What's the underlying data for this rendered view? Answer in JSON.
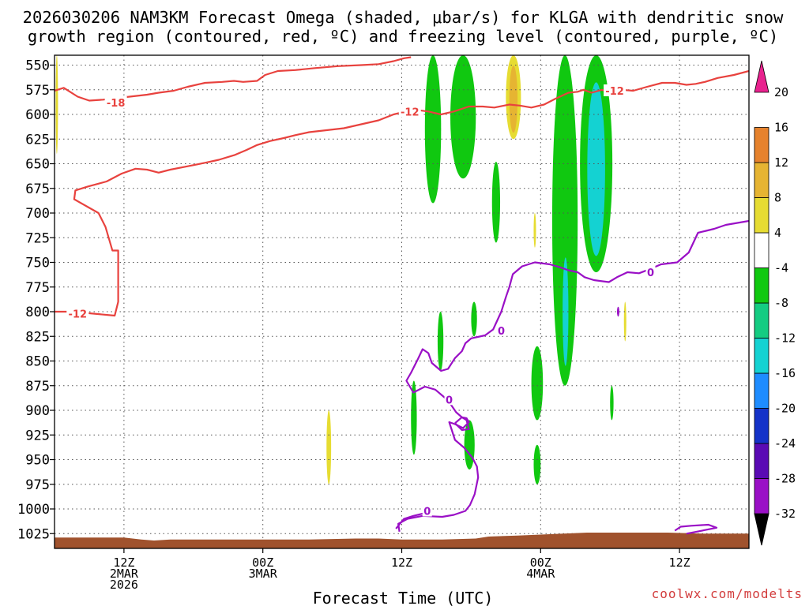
{
  "title": {
    "line1": "2026030206 NAM3KM Forecast Omega (shaded, μbar/s) for KLGA with dendritic snow",
    "line2": "growth region (contoured, red, ºC) and freezing level (contoured, purple, ºC)"
  },
  "credit": "coolwx.com/modelts",
  "colors": {
    "dendritic_contour": "#e8423e",
    "freezing_contour": "#9a10c6",
    "terrain": "#a0522d"
  },
  "chart_data": {
    "type": "heatmap",
    "xlabel": "Forecast Time (UTC)",
    "ylabel": "",
    "x_range_hours_after_init": [
      0,
      60
    ],
    "ylim": [
      1040,
      540
    ],
    "y_ticks": [
      550,
      575,
      600,
      625,
      650,
      675,
      700,
      725,
      750,
      775,
      800,
      825,
      850,
      875,
      900,
      925,
      950,
      975,
      1000,
      1025
    ],
    "x_ticks": [
      {
        "h": 6,
        "lines": [
          "12Z",
          "2MAR",
          "2026"
        ]
      },
      {
        "h": 18,
        "lines": [
          "00Z",
          "3MAR"
        ]
      },
      {
        "h": 30,
        "lines": [
          "12Z"
        ]
      },
      {
        "h": 42,
        "lines": [
          "00Z",
          "4MAR"
        ]
      },
      {
        "h": 54,
        "lines": [
          "12Z"
        ]
      }
    ],
    "grid": true,
    "colorbar": {
      "levels": [
        -36,
        -32,
        -28,
        -24,
        -20,
        -16,
        -12,
        -8,
        -4,
        4,
        8,
        12,
        16,
        20
      ],
      "colors": [
        "#a8a8a8",
        "#9a10c6",
        "#5a0ab4",
        "#1432c8",
        "#1e8cff",
        "#14d2d2",
        "#14cc82",
        "#10c810",
        "#ffffff",
        "#e6dc32",
        "#e6b432",
        "#e6822d",
        "#e84640"
      ]
    },
    "omega_features": [
      {
        "type": "shaded",
        "value_range": [
          4,
          8
        ],
        "h": [
          0.1,
          0.3
        ],
        "p": [
          540,
          640
        ]
      },
      {
        "type": "shaded",
        "value_range": [
          4,
          8
        ],
        "h": [
          23.5,
          23.9
        ],
        "p": [
          900,
          975
        ]
      },
      {
        "type": "shaded",
        "value_range": [
          -8,
          -4
        ],
        "h": [
          32.0,
          33.4
        ],
        "p": [
          540,
          690
        ]
      },
      {
        "type": "shaded",
        "value_range": [
          -8,
          -4
        ],
        "h": [
          34.2,
          36.4
        ],
        "p": [
          540,
          665
        ]
      },
      {
        "type": "shaded",
        "value_range": [
          -8,
          -4
        ],
        "h": [
          37.8,
          38.5
        ],
        "p": [
          648,
          730
        ]
      },
      {
        "type": "shaded",
        "value_range": [
          4,
          12
        ],
        "h": [
          39.0,
          40.3
        ],
        "p": [
          540,
          625
        ]
      },
      {
        "type": "shaded",
        "value_range": [
          -8,
          -4
        ],
        "h": [
          43.0,
          45.2
        ],
        "p": [
          540,
          875
        ]
      },
      {
        "type": "shaded",
        "value_range": [
          -16,
          -12
        ],
        "h": [
          43.9,
          44.4
        ],
        "p": [
          745,
          855
        ]
      },
      {
        "type": "shaded",
        "value_range": [
          -16,
          -4
        ],
        "h": [
          45.4,
          48.2
        ],
        "p": [
          540,
          760
        ]
      },
      {
        "type": "shaded",
        "value_range": [
          -8,
          -4
        ],
        "h": [
          33.1,
          33.6
        ],
        "p": [
          800,
          860
        ]
      },
      {
        "type": "shaded",
        "value_range": [
          -8,
          -4
        ],
        "h": [
          36.0,
          36.5
        ],
        "p": [
          790,
          825
        ]
      },
      {
        "type": "shaded",
        "value_range": [
          -8,
          -4
        ],
        "h": [
          30.8,
          31.3
        ],
        "p": [
          870,
          945
        ]
      },
      {
        "type": "shaded",
        "value_range": [
          -8,
          -4
        ],
        "h": [
          35.4,
          36.3
        ],
        "p": [
          910,
          960
        ]
      },
      {
        "type": "shaded",
        "value_range": [
          -8,
          -4
        ],
        "h": [
          41.2,
          42.2
        ],
        "p": [
          835,
          910
        ]
      },
      {
        "type": "shaded",
        "value_range": [
          -8,
          -4
        ],
        "h": [
          41.4,
          42.0
        ],
        "p": [
          935,
          975
        ]
      },
      {
        "type": "shaded",
        "value_range": [
          -8,
          -4
        ],
        "h": [
          48.0,
          48.3
        ],
        "p": [
          875,
          910
        ]
      },
      {
        "type": "shaded",
        "value_range": [
          4,
          8
        ],
        "h": [
          41.4,
          41.6
        ],
        "p": [
          700,
          735
        ]
      },
      {
        "type": "shaded",
        "value_range": [
          4,
          8
        ],
        "h": [
          49.2,
          49.4
        ],
        "p": [
          790,
          830
        ]
      },
      {
        "type": "shaded",
        "value_range": [
          -32,
          -28
        ],
        "h": [
          48.6,
          48.8
        ],
        "p": [
          795,
          805
        ]
      }
    ],
    "contours": [
      {
        "name": "dendritic -18",
        "color_key": "dendritic_contour",
        "label": "-18",
        "label_at": [
          5.3,
          588
        ],
        "points": [
          [
            0,
            576
          ],
          [
            0.8,
            573
          ],
          [
            2,
            582
          ],
          [
            3,
            586
          ],
          [
            4.2,
            585
          ],
          [
            6.5,
            582
          ],
          [
            8,
            580
          ],
          [
            9,
            578
          ],
          [
            10.3,
            576
          ],
          [
            11.5,
            572
          ],
          [
            13,
            568
          ],
          [
            14.5,
            567
          ],
          [
            15.5,
            566
          ],
          [
            16.3,
            567
          ],
          [
            17.5,
            566
          ],
          [
            18.2,
            560
          ],
          [
            19.3,
            556
          ],
          [
            20.8,
            555
          ],
          [
            22.5,
            553
          ],
          [
            24.5,
            551
          ],
          [
            26.5,
            550
          ],
          [
            28,
            549
          ],
          [
            29.3,
            546
          ],
          [
            30.2,
            543
          ],
          [
            30.8,
            542
          ]
        ]
      },
      {
        "name": "dendritic -12 upper",
        "color_key": "dendritic_contour",
        "label": "-12",
        "label_at": [
          30.7,
          597
        ],
        "points": [
          [
            0,
            800
          ],
          [
            1.5,
            800
          ],
          [
            5.2,
            804
          ],
          [
            5.5,
            790
          ],
          [
            5.5,
            738
          ],
          [
            5,
            738
          ],
          [
            4.4,
            714
          ],
          [
            3.8,
            700
          ],
          [
            1.7,
            686
          ],
          [
            1.8,
            677
          ],
          [
            2.9,
            673
          ],
          [
            4.5,
            668
          ],
          [
            5.8,
            660
          ],
          [
            7,
            655
          ],
          [
            8,
            656
          ],
          [
            9,
            659
          ],
          [
            10,
            656
          ],
          [
            11.3,
            653
          ],
          [
            13,
            649
          ],
          [
            14.2,
            646
          ],
          [
            15.6,
            641
          ],
          [
            16.6,
            636
          ],
          [
            17.5,
            631
          ],
          [
            18.6,
            627
          ],
          [
            19.8,
            624
          ],
          [
            20.8,
            621
          ],
          [
            22,
            618
          ],
          [
            23.5,
            616
          ],
          [
            25,
            614
          ],
          [
            26.5,
            610
          ],
          [
            28,
            606
          ],
          [
            29.3,
            600
          ],
          [
            31,
            595
          ],
          [
            32.3,
            597
          ],
          [
            33.4,
            600
          ],
          [
            34.5,
            597
          ],
          [
            35.8,
            592
          ],
          [
            37,
            592
          ],
          [
            38,
            593
          ],
          [
            39.3,
            590
          ],
          [
            40.2,
            591
          ],
          [
            41.2,
            593
          ],
          [
            42.3,
            590
          ],
          [
            43.3,
            584
          ],
          [
            44.4,
            578
          ],
          [
            45.2,
            577
          ],
          [
            45.7,
            575
          ],
          [
            46.4,
            578
          ],
          [
            47.3,
            575
          ],
          [
            48,
            578
          ],
          [
            49,
            575
          ],
          [
            50,
            576
          ],
          [
            51.2,
            572
          ],
          [
            52.5,
            568
          ],
          [
            53.6,
            568
          ],
          [
            54.6,
            570
          ],
          [
            55.4,
            569
          ],
          [
            56.2,
            567
          ],
          [
            57.3,
            563
          ],
          [
            58.7,
            560
          ],
          [
            60,
            556
          ]
        ]
      },
      {
        "name": "dendritic -12 at 800",
        "color_key": "dendritic_contour",
        "label": "-12",
        "label_at": [
          2,
          802
        ]
      },
      {
        "name": "dendritic -12 near 4MAR",
        "color_key": "dendritic_contour",
        "label": "-12",
        "label_at": [
          48.4,
          576
        ]
      },
      {
        "name": "freezing 0 main",
        "color_key": "freezing_contour",
        "label": "0",
        "label_at": [
          38.6,
          819
        ],
        "points": [
          [
            60,
            708
          ],
          [
            59,
            710
          ],
          [
            58,
            712
          ],
          [
            57,
            716
          ],
          [
            56.3,
            718
          ],
          [
            55.6,
            720
          ],
          [
            54.8,
            740
          ],
          [
            53.8,
            750
          ],
          [
            52.4,
            752
          ],
          [
            51.4,
            757
          ],
          [
            50.5,
            761
          ],
          [
            49.5,
            760
          ],
          [
            48.6,
            765
          ],
          [
            47.9,
            770
          ],
          [
            46.6,
            768
          ],
          [
            45.8,
            765
          ],
          [
            45.2,
            760
          ],
          [
            44.4,
            758
          ],
          [
            43.7,
            755
          ],
          [
            42.8,
            752
          ],
          [
            41.5,
            750
          ],
          [
            40.4,
            754
          ],
          [
            39.6,
            762
          ],
          [
            39.3,
            775
          ],
          [
            39,
            785
          ],
          [
            38.6,
            800
          ],
          [
            37.9,
            818
          ],
          [
            37.2,
            824
          ],
          [
            36,
            827
          ],
          [
            35.5,
            832
          ],
          [
            35.2,
            840
          ],
          [
            34.6,
            847
          ],
          [
            34,
            858
          ],
          [
            33.4,
            860
          ],
          [
            32.6,
            852
          ],
          [
            32.3,
            842
          ],
          [
            31.8,
            838
          ],
          [
            31.4,
            848
          ],
          [
            30.8,
            862
          ],
          [
            30.4,
            870
          ],
          [
            31,
            882
          ],
          [
            32,
            876
          ],
          [
            32.9,
            879
          ],
          [
            34,
            890
          ],
          [
            34.7,
            902
          ],
          [
            35.2,
            907
          ],
          [
            35.6,
            908
          ],
          [
            35.8,
            912
          ],
          [
            35.3,
            918
          ],
          [
            34.6,
            914
          ],
          [
            34.1,
            912
          ],
          [
            34.6,
            930
          ],
          [
            35.4,
            938
          ],
          [
            36.1,
            948
          ],
          [
            36.5,
            957
          ],
          [
            36.6,
            968
          ],
          [
            36.3,
            985
          ],
          [
            35.9,
            996
          ],
          [
            35.5,
            1002
          ],
          [
            34.5,
            1006
          ],
          [
            33.5,
            1008
          ],
          [
            31.8,
            1007
          ],
          [
            30.5,
            1010
          ],
          [
            29.7,
            1015
          ],
          [
            29.8,
            1023
          ]
        ]
      },
      {
        "name": "freezing 0 lower",
        "color_key": "freezing_contour",
        "label": "0",
        "label_at": [
          32.2,
          1002
        ],
        "points": [
          [
            29.5,
            1020
          ],
          [
            30.2,
            1010
          ],
          [
            31,
            1007
          ],
          [
            32.4,
            1003
          ]
        ]
      },
      {
        "name": "freezing 0 loop",
        "color_key": "freezing_contour",
        "label": "0",
        "label_at": [
          34.1,
          889
        ],
        "points": [
          [
            34.6,
            913
          ],
          [
            35.2,
            907
          ],
          [
            35.6,
            910
          ],
          [
            35.8,
            919
          ],
          [
            35.2,
            920
          ],
          [
            34.6,
            913
          ]
        ]
      },
      {
        "name": "freezing 0 right",
        "color_key": "freezing_contour",
        "label": "0",
        "label_at": [
          51.5,
          760
        ]
      },
      {
        "name": "freezing 0 near surface",
        "color_key": "freezing_contour",
        "points": [
          [
            53.6,
            1022
          ],
          [
            54.1,
            1018
          ],
          [
            55,
            1017
          ],
          [
            56.5,
            1016
          ],
          [
            57.2,
            1019
          ],
          [
            55.5,
            1023
          ],
          [
            54.6,
            1025
          ]
        ]
      }
    ],
    "terrain": {
      "color_key": "terrain",
      "points": [
        [
          0,
          1029
        ],
        [
          6,
          1029
        ],
        [
          7.5,
          1031
        ],
        [
          8.6,
          1032
        ],
        [
          10,
          1031
        ],
        [
          18,
          1031
        ],
        [
          22,
          1031
        ],
        [
          26,
          1030
        ],
        [
          28,
          1030
        ],
        [
          30,
          1031
        ],
        [
          33.5,
          1031
        ],
        [
          36.4,
          1030
        ],
        [
          37.5,
          1028
        ],
        [
          40,
          1027
        ],
        [
          42,
          1026
        ],
        [
          44,
          1025
        ],
        [
          46,
          1024
        ],
        [
          49.5,
          1024
        ],
        [
          53,
          1024
        ],
        [
          56,
          1025
        ],
        [
          60,
          1025
        ]
      ]
    }
  }
}
